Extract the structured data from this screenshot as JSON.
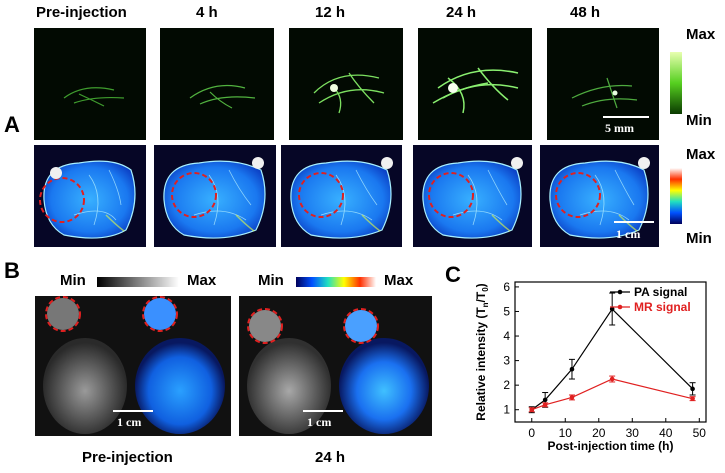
{
  "panel_a": {
    "letter": "A",
    "timepoints": [
      "Pre-injection",
      "4 h",
      "12 h",
      "24 h",
      "48 h"
    ],
    "pa_colorbar": {
      "max": "Max",
      "min": "Min"
    },
    "mr_colorbar": {
      "max": "Max",
      "min": "Min"
    },
    "pa_scalebar": "5 mm",
    "mr_scalebar": "1 cm",
    "pa_colormap": [
      "#0a1a00",
      "#9bff6a"
    ],
    "mr_colormap": [
      "#00005a",
      "#0050ff",
      "#20e0c0",
      "#ffff00",
      "#ff3000",
      "#ffffff"
    ]
  },
  "panel_b": {
    "letter": "B",
    "gray_colorbar": {
      "min": "Min",
      "max": "Max"
    },
    "color_colorbar": {
      "min": "Min",
      "max": "Max"
    },
    "scalebar_1": "1 cm",
    "scalebar_2": "1 cm",
    "caption_1": "Pre-injection",
    "caption_2": "24 h"
  },
  "panel_c": {
    "letter": "C"
  },
  "chart_data": {
    "type": "line",
    "xlabel": "Post-injection time (h)",
    "ylabel": "Relative intensity (T",
    "ylabel_sub_n": "n",
    "ylabel_mid": "/T",
    "ylabel_sub_0": "0",
    "ylabel_end": ")",
    "xlim": [
      -5,
      52
    ],
    "ylim": [
      0.5,
      6.2
    ],
    "xticks": [
      0,
      10,
      20,
      30,
      40,
      50
    ],
    "yticks": [
      1,
      2,
      3,
      4,
      5,
      6
    ],
    "series": [
      {
        "name": "PA signal",
        "color": "#000000",
        "x": [
          0,
          4,
          12,
          24,
          48
        ],
        "y": [
          1.0,
          1.4,
          2.65,
          5.1,
          1.85
        ],
        "err": [
          0.12,
          0.3,
          0.4,
          0.65,
          0.25
        ]
      },
      {
        "name": "MR signal",
        "color": "#e02020",
        "x": [
          0,
          4,
          12,
          24,
          48
        ],
        "y": [
          1.0,
          1.2,
          1.5,
          2.25,
          1.45
        ],
        "err": [
          0.08,
          0.08,
          0.1,
          0.12,
          0.08
        ]
      }
    ],
    "legend_position": "top-right"
  }
}
